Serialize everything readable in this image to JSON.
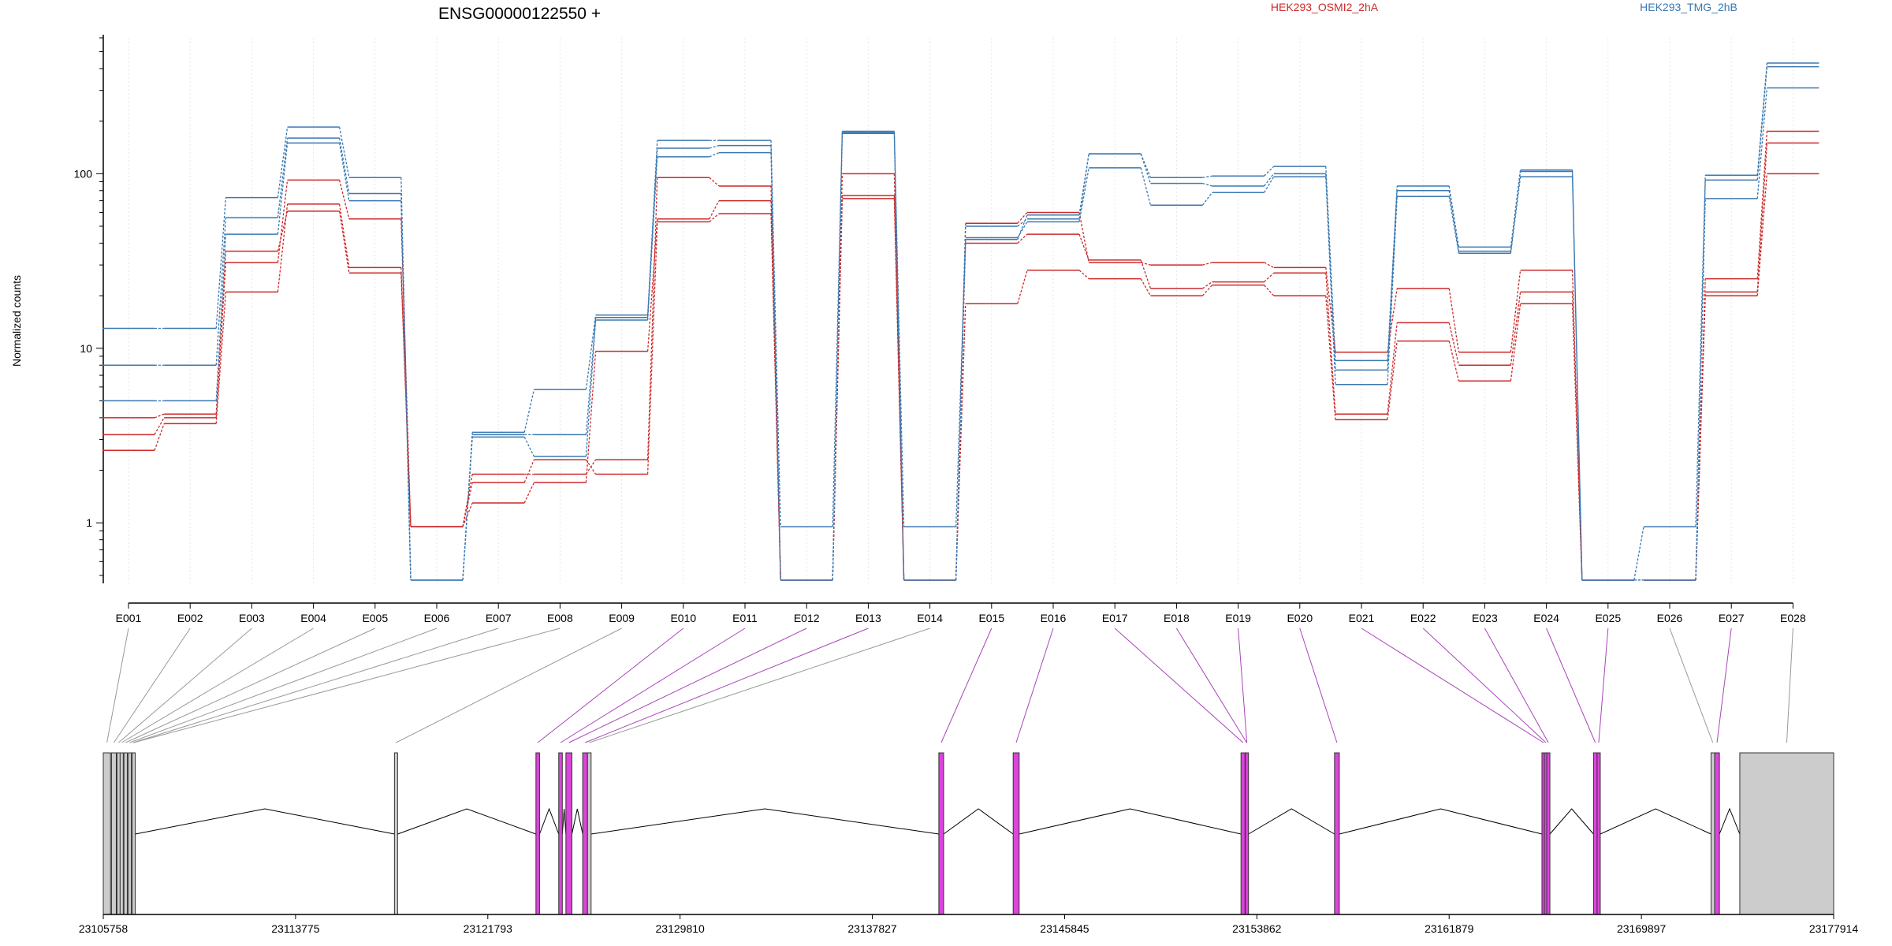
{
  "chart_data": {
    "type": "line",
    "title": "ENSG00000122550 +",
    "ylabel": "Normalized counts",
    "yscale": "log",
    "ylim": [
      0.45,
      600
    ],
    "y_ticks": [
      1,
      10,
      100
    ],
    "y_tick_labels": [
      "1",
      "10",
      "100"
    ],
    "legend": [
      "HEK293_OSMI2_2hA",
      "HEK293_TMG_2hB"
    ],
    "legend_placement": "top",
    "colors": {
      "osmi": "#cc2a2a",
      "tmg": "#3a78b0",
      "highlight_exon": "#dd44dd",
      "plain_exon": "#cccccc",
      "link_gray": "#999999",
      "link_purple": "#aa44bb"
    },
    "exons": [
      "E001",
      "E002",
      "E003",
      "E004",
      "E005",
      "E006",
      "E007",
      "E008",
      "E009",
      "E010",
      "E011",
      "E012",
      "E013",
      "E014",
      "E015",
      "E016",
      "E017",
      "E018",
      "E019",
      "E020",
      "E021",
      "E022",
      "E023",
      "E024",
      "E025",
      "E026",
      "E027",
      "E028"
    ],
    "highlighted_exons": [
      "E010",
      "E011",
      "E012",
      "E013",
      "E015",
      "E016",
      "E017",
      "E018",
      "E019",
      "E020",
      "E021",
      "E022",
      "E023",
      "E024",
      "E025",
      "E027"
    ],
    "series": [
      {
        "group": "HEK293_OSMI2_2hA",
        "values": [
          3.2,
          4.0,
          31,
          92,
          55,
          0.95,
          1.9,
          1.9,
          2.3,
          95,
          85,
          0.47,
          100,
          0.47,
          52,
          60,
          31,
          30,
          31,
          29,
          9.5,
          22,
          9.5,
          28,
          0.47,
          0.47,
          25,
          175
        ]
      },
      {
        "group": "HEK293_OSMI2_2hA",
        "values": [
          2.6,
          3.7,
          21,
          67,
          29,
          0.95,
          1.3,
          1.7,
          9.6,
          55,
          70,
          0.47,
          75,
          0.47,
          40,
          45,
          32,
          22,
          24,
          27,
          4.2,
          14,
          8,
          21,
          0.47,
          0.47,
          21,
          150
        ]
      },
      {
        "group": "HEK293_OSMI2_2hA",
        "values": [
          4.0,
          4.2,
          36,
          61,
          27,
          0.95,
          1.7,
          2.3,
          1.9,
          53,
          59,
          0.47,
          72,
          0.47,
          18,
          28,
          25,
          20,
          23,
          20,
          3.9,
          11,
          6.5,
          18,
          0.47,
          0.47,
          20,
          100
        ]
      },
      {
        "group": "HEK293_TMG_2hB",
        "values": [
          13,
          13,
          73,
          185,
          95,
          0.47,
          3.3,
          5.8,
          15.5,
          155,
          155,
          0.95,
          175,
          0.95,
          42,
          58,
          130,
          95,
          97,
          110,
          8.5,
          85,
          38,
          105,
          0.47,
          0.95,
          98,
          430
        ]
      },
      {
        "group": "HEK293_TMG_2hB",
        "values": [
          8,
          8,
          56,
          160,
          77,
          0.47,
          3.2,
          3.2,
          15,
          140,
          145,
          0.47,
          172,
          0.47,
          50,
          55,
          130,
          88,
          85,
          100,
          7.5,
          80,
          36,
          103,
          0.47,
          0.47,
          92,
          410
        ]
      },
      {
        "group": "HEK293_TMG_2hB",
        "values": [
          5,
          5,
          45,
          150,
          70,
          0.47,
          3.1,
          2.4,
          14.5,
          125,
          132,
          0.47,
          170,
          0.47,
          43,
          53,
          108,
          66,
          78,
          96,
          6.2,
          74,
          35,
          96,
          0.47,
          0.47,
          72,
          310
        ]
      }
    ],
    "gene_model": {
      "x_ticks": [
        23105758,
        23113775,
        23121793,
        23129810,
        23137827,
        23145845,
        23153862,
        23161879,
        23169897,
        23177914
      ],
      "x_tick_labels": [
        "23105758",
        "23113775",
        "23121793",
        "23129810",
        "23137827",
        "23145845",
        "23153862",
        "23161879",
        "23169897",
        "23177914"
      ],
      "start": 23105758,
      "end": 23177914,
      "exon_boxes": [
        {
          "exon": "E001",
          "start": 23105758,
          "end": 23106060
        },
        {
          "exon": "E002",
          "start": 23106100,
          "end": 23106300
        },
        {
          "exon": "E003",
          "start": 23106330,
          "end": 23106430
        },
        {
          "exon": "E004",
          "start": 23106460,
          "end": 23106560
        },
        {
          "exon": "E005",
          "start": 23106620,
          "end": 23106760
        },
        {
          "exon": "E006",
          "start": 23106800,
          "end": 23106920
        },
        {
          "exon": "E007",
          "start": 23106940,
          "end": 23107000
        },
        {
          "exon": "E008",
          "start": 23106960,
          "end": 23107060
        },
        {
          "exon": "E009",
          "start": 23117900,
          "end": 23118020
        },
        {
          "exon": "E010",
          "start": 23123800,
          "end": 23123950
        },
        {
          "exon": "E011",
          "start": 23124750,
          "end": 23124900
        },
        {
          "exon": "E012",
          "start": 23125050,
          "end": 23125300
        },
        {
          "exon": "E013",
          "start": 23125750,
          "end": 23125950
        },
        {
          "exon": "E014",
          "start": 23125950,
          "end": 23126100
        },
        {
          "exon": "E015",
          "start": 23140600,
          "end": 23140800
        },
        {
          "exon": "E016",
          "start": 23143700,
          "end": 23143950
        },
        {
          "exon": "E017",
          "start": 23153200,
          "end": 23153370
        },
        {
          "exon": "E018",
          "start": 23153370,
          "end": 23153380
        },
        {
          "exon": "E019",
          "start": 23153380,
          "end": 23153400
        },
        {
          "exon": "E020",
          "start": 23157100,
          "end": 23157300
        },
        {
          "exon": "E021",
          "start": 23165750,
          "end": 23165850
        },
        {
          "exon": "E022",
          "start": 23165850,
          "end": 23165950
        },
        {
          "exon": "E023",
          "start": 23165950,
          "end": 23166050
        },
        {
          "exon": "E024",
          "start": 23167900,
          "end": 23168050
        },
        {
          "exon": "E025",
          "start": 23168050,
          "end": 23168150
        },
        {
          "exon": "E026",
          "start": 23172800,
          "end": 23172950
        },
        {
          "exon": "E027",
          "start": 23172950,
          "end": 23173150
        },
        {
          "exon": "E028",
          "start": 23174000,
          "end": 23177914
        }
      ]
    }
  }
}
